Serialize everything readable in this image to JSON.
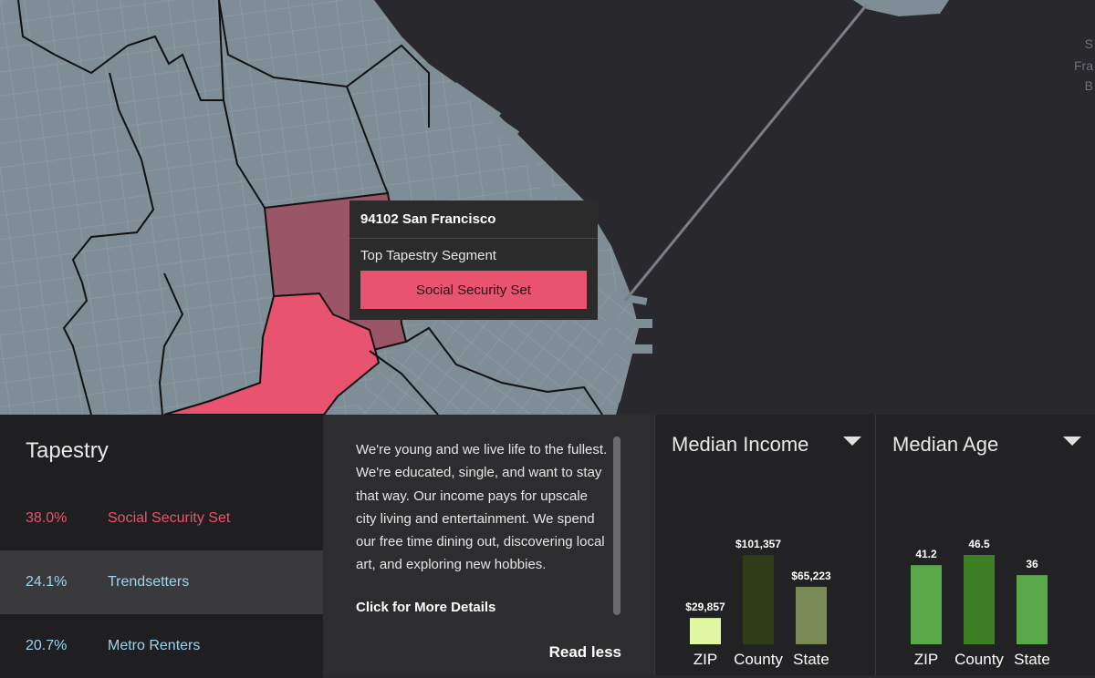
{
  "map": {
    "corner_label_lines": [
      "S",
      "Fra",
      "B"
    ],
    "colors": {
      "water": "#29292d",
      "land": "#7e8d96",
      "highlight_dark": "#9a5566",
      "highlight_pink": "#e8546f"
    }
  },
  "popup": {
    "title": "94102 San Francisco",
    "subtitle": "Top Tapestry Segment",
    "segment_button": "Social Security Set",
    "button_color": "#e8546f"
  },
  "tapestry": {
    "title": "Tapestry",
    "rows": [
      {
        "percent": "38.0%",
        "name": "Social Security Set",
        "color": "#e8546f"
      },
      {
        "percent": "24.1%",
        "name": "Trendsetters",
        "color": "#9fd3ec"
      },
      {
        "percent": "20.7%",
        "name": "Metro Renters",
        "color": "#9fd3ec"
      }
    ]
  },
  "description": {
    "text": "We're young and we live life to the fullest. We're educated, single, and want to stay that way. Our income pays for upscale city living and entertainment. We spend our free time dining out, discovering local art, and exploring new hobbies.",
    "link": "Click for More Details",
    "read_less": "Read less"
  },
  "chart_data": [
    {
      "type": "bar",
      "title": "Median Income",
      "categories": [
        "ZIP",
        "County",
        "State"
      ],
      "values": [
        29857,
        101357,
        65223
      ],
      "value_labels": [
        "$29,857",
        "$101,357",
        "$65,223"
      ],
      "colors": [
        "#e2f7a4",
        "#2f3c17",
        "#7a8a58"
      ],
      "ylim": [
        0,
        101357
      ]
    },
    {
      "type": "bar",
      "title": "Median Age",
      "categories": [
        "ZIP",
        "County",
        "State"
      ],
      "values": [
        41.2,
        46.5,
        36
      ],
      "value_labels": [
        "41.2",
        "46.5",
        "36"
      ],
      "colors": [
        "#59a84a",
        "#3f7f24",
        "#59a84a"
      ],
      "ylim": [
        0,
        46.5
      ]
    }
  ]
}
